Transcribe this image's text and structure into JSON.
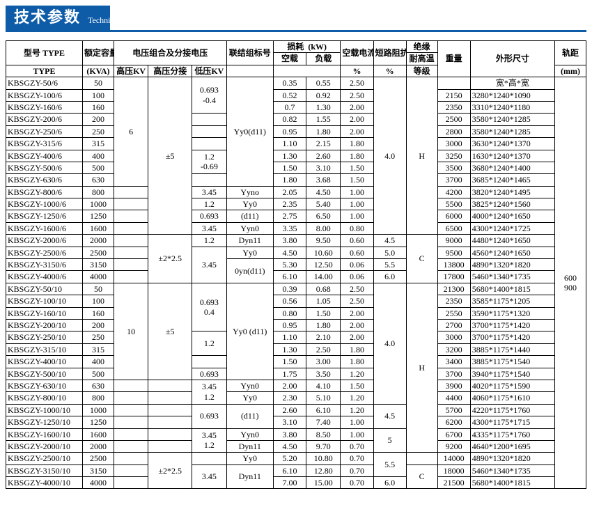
{
  "header": {
    "cn": "技术参数",
    "en": "Technical parameter"
  },
  "labels": {
    "type_cn": "型号 TYPE",
    "type_en": "TYPE",
    "kva_cn": "额定容量",
    "kva_en": "(KVA)",
    "volt_group": "电压组合及分接电压",
    "hv": "高压KV",
    "tap": "高压分接",
    "lv": "低压KV",
    "conn": "联结组标号",
    "loss_top": "损耗",
    "loss_unit": "(kW)",
    "noload": "空载",
    "fullload": "负载",
    "i0": "空载电流",
    "z": "短路阻抗",
    "pct": "%",
    "ins": "绝缘",
    "ins_sub": "耐高温",
    "ins_grade": "等级",
    "weight": "重量",
    "dim": "外形尺寸",
    "dim_hint": "宽*高*宽",
    "rail": "轨距",
    "mm": "(mm)"
  },
  "rows": [
    {
      "type": "KBSGZY-50/6",
      "kva": "50",
      "nl": "0.35",
      "fl": "0.55",
      "i0": "2.50",
      "wt": "",
      "dim": ""
    },
    {
      "type": "KBSGZY-100/6",
      "kva": "100",
      "nl": "0.52",
      "fl": "0.92",
      "i0": "2.50",
      "wt": "2150",
      "dim": "3280*1240*1090"
    },
    {
      "type": "KBSGZY-160/6",
      "kva": "160",
      "nl": "0.7",
      "fl": "1.30",
      "i0": "2.00",
      "wt": "2350",
      "dim": "3310*1240*1180"
    },
    {
      "type": "KBSGZY-200/6",
      "kva": "200",
      "nl": "0.82",
      "fl": "1.55",
      "i0": "2.00",
      "wt": "2500",
      "dim": "3580*1240*1285"
    },
    {
      "type": "KBSGZY-250/6",
      "kva": "250",
      "nl": "0.95",
      "fl": "1.80",
      "i0": "2.00",
      "wt": "2800",
      "dim": "3580*1240*1285"
    },
    {
      "type": "KBSGZY-315/6",
      "kva": "315",
      "nl": "1.10",
      "fl": "2.15",
      "i0": "1.80",
      "wt": "3000",
      "dim": "3630*1240*1370"
    },
    {
      "type": "KBSGZY-400/6",
      "kva": "400",
      "nl": "1.30",
      "fl": "2.60",
      "i0": "1.80",
      "wt": "3250",
      "dim": "1630*1240*1370"
    },
    {
      "type": "KBSGZY-500/6",
      "kva": "500",
      "nl": "1.50",
      "fl": "3.10",
      "i0": "1.50",
      "wt": "3500",
      "dim": "3680*1240*1400"
    },
    {
      "type": "KBSGZY-630/6",
      "kva": "630",
      "nl": "1.80",
      "fl": "3.68",
      "i0": "1.50",
      "wt": "3700",
      "dim": "3685*1240*1465"
    },
    {
      "type": "KBSGZY-800/6",
      "kva": "800",
      "nl": "2.05",
      "fl": "4.50",
      "i0": "1.00",
      "wt": "4200",
      "dim": "3820*1240*1495"
    },
    {
      "type": "KBSGZY-1000/6",
      "kva": "1000",
      "nl": "2.35",
      "fl": "5.40",
      "i0": "1.00",
      "wt": "5500",
      "dim": "3825*1240*1560"
    },
    {
      "type": "KBSGZY-1250/6",
      "kva": "1250",
      "nl": "2.75",
      "fl": "6.50",
      "i0": "1.00",
      "wt": "6000",
      "dim": "4000*1240*1650"
    },
    {
      "type": "KBSGZY-1600/6",
      "kva": "1600",
      "nl": "3.35",
      "fl": "8.00",
      "i0": "0.80",
      "wt": "6500",
      "dim": "4300*1240*1725"
    },
    {
      "type": "KBSGZY-2000/6",
      "kva": "2000",
      "nl": "3.80",
      "fl": "9.50",
      "i0": "0.60",
      "z": "4.5",
      "wt": "9000",
      "dim": "4480*1240*1650"
    },
    {
      "type": "KBSGZY-2500/6",
      "kva": "2500",
      "nl": "4.50",
      "fl": "10.60",
      "i0": "0.60",
      "z": "5.0",
      "wt": "9500",
      "dim": "4560*1240*1650"
    },
    {
      "type": "KBSGZY-3150/6",
      "kva": "3150",
      "nl": "5.30",
      "fl": "12.50",
      "i0": "0.06",
      "z": "5.5",
      "wt": "13800",
      "dim": "4890*1320*1820"
    },
    {
      "type": "KBSGZY-4000/6",
      "kva": "4000",
      "nl": "6.10",
      "fl": "14.00",
      "i0": "0.06",
      "z": "6.0",
      "wt": "17800",
      "dim": "5460*1340*1735"
    },
    {
      "type": "KBSGZY-50/10",
      "kva": "50",
      "nl": "0.39",
      "fl": "0.68",
      "i0": "2.50",
      "wt": "21300",
      "dim": "5680*1400*1815"
    },
    {
      "type": "KBSGZY-100/10",
      "kva": "100",
      "nl": "0.56",
      "fl": "1.05",
      "i0": "2.50",
      "wt": "2350",
      "dim": "3585*1175*1205"
    },
    {
      "type": "KBSGZY-160/10",
      "kva": "160",
      "nl": "0.80",
      "fl": "1.50",
      "i0": "2.00",
      "wt": "2550",
      "dim": "3590*1175*1320"
    },
    {
      "type": "KBSGZY-200/10",
      "kva": "200",
      "nl": "0.95",
      "fl": "1.80",
      "i0": "2.00",
      "wt": "2700",
      "dim": "3700*1175*1420"
    },
    {
      "type": "KBSGZY-250/10",
      "kva": "250",
      "nl": "1.10",
      "fl": "2.10",
      "i0": "2.00",
      "wt": "3000",
      "dim": "3700*1175*1420"
    },
    {
      "type": "KBSGZY-315/10",
      "kva": "315",
      "nl": "1.30",
      "fl": "2.50",
      "i0": "1.80",
      "wt": "3200",
      "dim": "3885*1175*1440"
    },
    {
      "type": "KBSGZY-400/10",
      "kva": "400",
      "nl": "1.50",
      "fl": "3.00",
      "i0": "1.80",
      "wt": "3400",
      "dim": "3885*1175*1540"
    },
    {
      "type": "KBSGZY-500/10",
      "kva": "500",
      "nl": "1.75",
      "fl": "3.50",
      "i0": "1.20",
      "wt": "3700",
      "dim": "3940*1175*1540"
    },
    {
      "type": "KBSGZY-630/10",
      "kva": "630",
      "nl": "2.00",
      "fl": "4.10",
      "i0": "1.50",
      "wt": "3900",
      "dim": "4020*1175*1590"
    },
    {
      "type": "KBSGZY-800/10",
      "kva": "800",
      "nl": "2.30",
      "fl": "5.10",
      "i0": "1.20",
      "wt": "4400",
      "dim": "4060*1175*1610"
    },
    {
      "type": "KBSGZY-1000/10",
      "kva": "1000",
      "nl": "2.60",
      "fl": "6.10",
      "i0": "1.20",
      "wt": "5700",
      "dim": "4220*1175*1760"
    },
    {
      "type": "KBSGZY-1250/10",
      "kva": "1250",
      "nl": "3.10",
      "fl": "7.40",
      "i0": "1.00",
      "wt": "6200",
      "dim": "4300*1175*1715"
    },
    {
      "type": "KBSGZY-1600/10",
      "kva": "1600",
      "nl": "3.80",
      "fl": "8.50",
      "i0": "1.00",
      "wt": "6700",
      "dim": "4335*1175*1760"
    },
    {
      "type": "KBSGZY-2000/10",
      "kva": "2000",
      "nl": "4.50",
      "fl": "9.70",
      "i0": "0.70",
      "wt": "9200",
      "dim": "4640*1200*1695"
    },
    {
      "type": "KBSGZY-2500/10",
      "kva": "2500",
      "nl": "5.20",
      "fl": "10.80",
      "i0": "0.70",
      "wt": "14000",
      "dim": "4890*1320*1820"
    },
    {
      "type": "KBSGZY-3150/10",
      "kva": "3150",
      "nl": "6.10",
      "fl": "12.80",
      "i0": "0.70",
      "wt": "18000",
      "dim": "5460*1340*1735"
    },
    {
      "type": "KBSGZY-4000/10",
      "kva": "4000",
      "nl": "7.00",
      "fl": "15.00",
      "i0": "0.70",
      "z": "6.0",
      "wt": "21500",
      "dim": "5680*1400*1815"
    }
  ],
  "merged": {
    "hv_6": "6",
    "hv_10": "10",
    "tap_pm5": "±5",
    "tap_pm2p5": "±2*2.5",
    "lv_069_04": "0.693\n-0.4",
    "lv_12_069": "1.2\n-0.69",
    "lv_345_Yyno": "3.45",
    "lv_12_Yy0": "1.2",
    "lv_0693_d11": "0.693",
    "lv_345_Yyn0": "3.45",
    "lv_12_Dyn11": "1.2",
    "lv_345_Oyn": "3.45",
    "lv_0693_04": "0.693\n0.4",
    "lv_12": "1.2",
    "lv_0693": "0.693",
    "lv_345_12": "3.45\n1.2",
    "lv_0693b": "0.693",
    "lv_345_12b": "3.45\n1.2",
    "lv_345b": "3.45",
    "conn_yy0_d11": "Yy0(d11)",
    "conn_yyno": "Yyno",
    "conn_yy0": "Yy0",
    "conn_d11": "(d11)",
    "conn_yyn0": "Yyn0",
    "conn_dyn11": "Dyn11",
    "conn_oyn_d11": "0yn(d11)",
    "conn_yy0_d11b": "Yy0 (d11)",
    "z_40": "4.0",
    "z_45": "4.5",
    "z_5": "5",
    "z_55": "5.5",
    "ins_H": "H",
    "ins_C": "C",
    "rail": "600\n900"
  }
}
